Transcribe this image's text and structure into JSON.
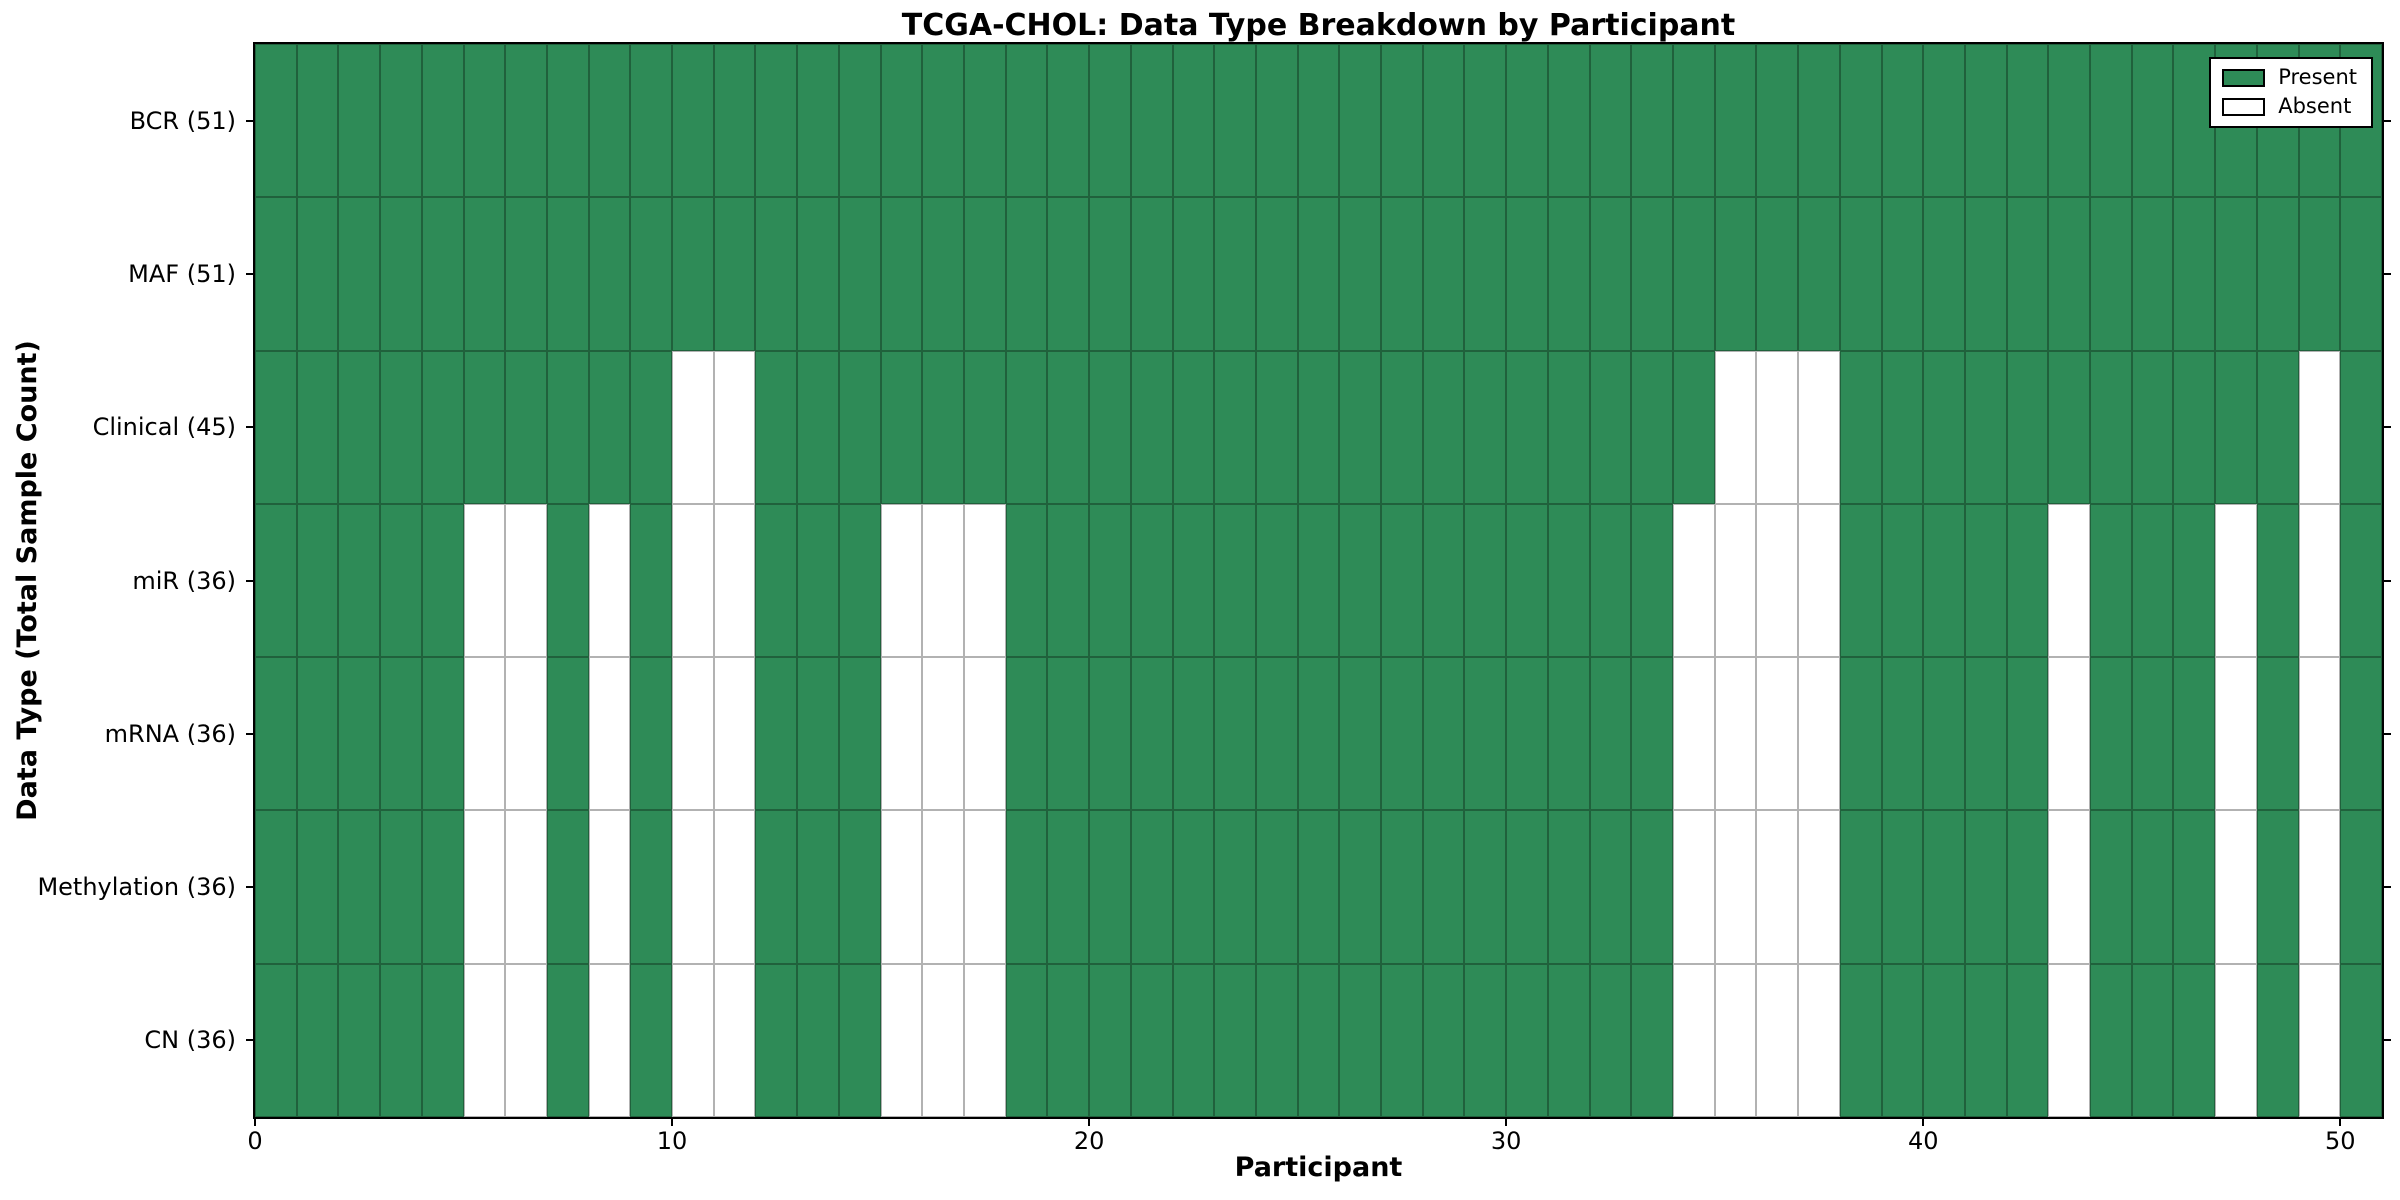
{
  "chart_data": {
    "type": "heatmap",
    "title": "TCGA-CHOL: Data Type Breakdown by Participant",
    "xlabel": "Participant",
    "ylabel": "Data Type (Total Sample Count)",
    "n_participants": 51,
    "x_range": [
      0,
      51
    ],
    "x_ticks": [
      0,
      10,
      20,
      30,
      40,
      50
    ],
    "grid": "cell-edges",
    "legend_position": "upper-right",
    "categories": [
      "BCR (51)",
      "MAF (51)",
      "Clinical (45)",
      "miR (36)",
      "mRNA (36)",
      "Methylation (36)",
      "CN (36)"
    ],
    "rows": [
      {
        "label": "BCR (51)",
        "data_type": "BCR",
        "present_count": 51,
        "absent_participants": []
      },
      {
        "label": "MAF (51)",
        "data_type": "MAF",
        "present_count": 51,
        "absent_participants": []
      },
      {
        "label": "Clinical (45)",
        "data_type": "Clinical",
        "present_count": 45,
        "absent_participants": [
          10,
          11,
          35,
          36,
          37,
          49
        ]
      },
      {
        "label": "miR (36)",
        "data_type": "miR",
        "present_count": 36,
        "absent_participants": [
          5,
          6,
          8,
          10,
          11,
          15,
          16,
          17,
          34,
          35,
          36,
          37,
          43,
          47,
          49
        ]
      },
      {
        "label": "mRNA (36)",
        "data_type": "mRNA",
        "present_count": 36,
        "absent_participants": [
          5,
          6,
          8,
          10,
          11,
          15,
          16,
          17,
          34,
          35,
          36,
          37,
          43,
          47,
          49
        ]
      },
      {
        "label": "Methylation (36)",
        "data_type": "Methylation",
        "present_count": 36,
        "absent_participants": [
          5,
          6,
          8,
          10,
          11,
          15,
          16,
          17,
          34,
          35,
          36,
          37,
          43,
          47,
          49
        ]
      },
      {
        "label": "CN (36)",
        "data_type": "CN",
        "present_count": 36,
        "absent_participants": [
          5,
          6,
          8,
          10,
          11,
          15,
          16,
          17,
          34,
          35,
          36,
          37,
          43,
          47,
          49
        ]
      }
    ],
    "colors": {
      "present": "#2e8b57",
      "absent": "#ffffff"
    }
  },
  "legend": {
    "items": [
      {
        "label": "Present",
        "color": "#2e8b57"
      },
      {
        "label": "Absent",
        "color": "#ffffff"
      }
    ]
  }
}
